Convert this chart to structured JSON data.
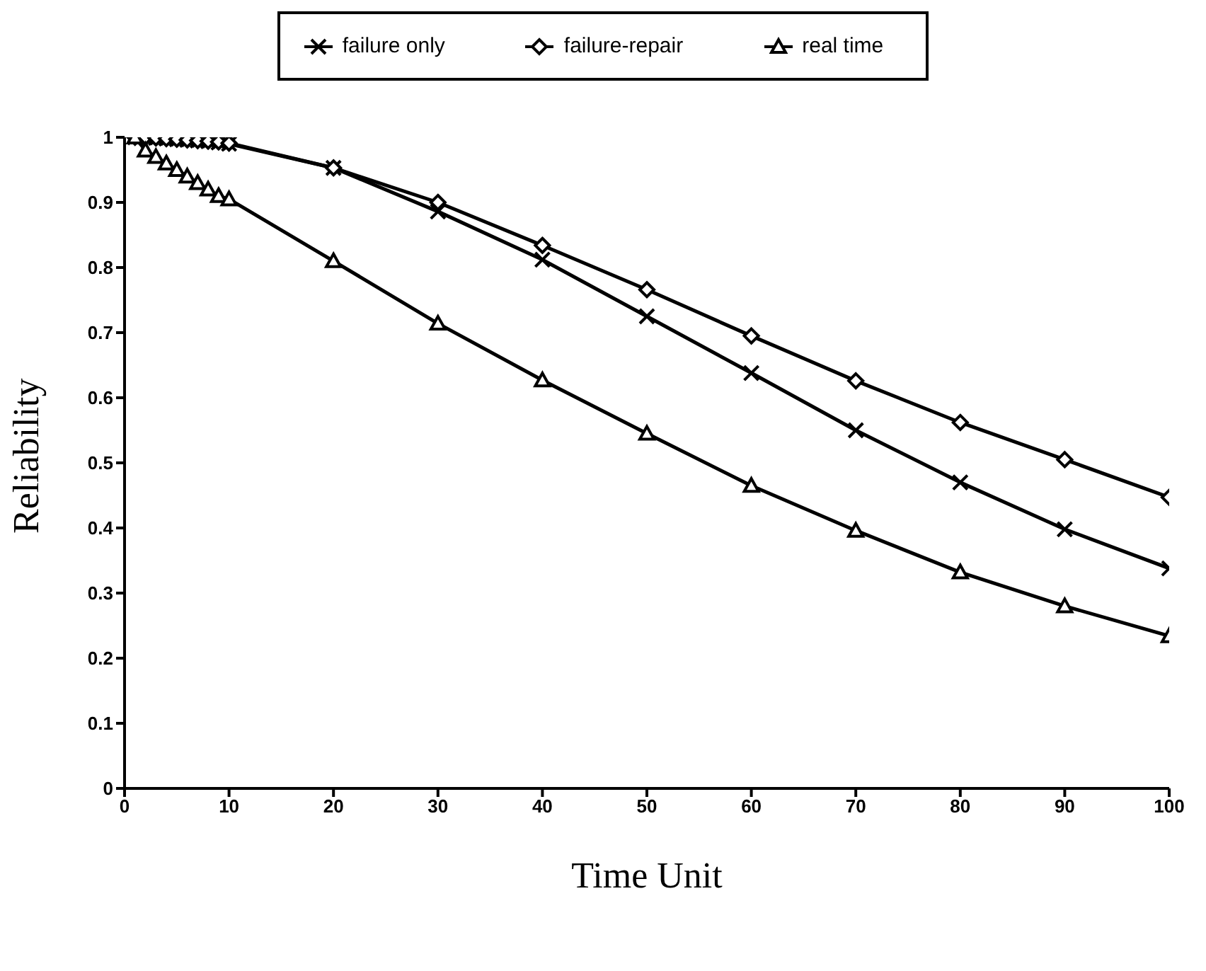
{
  "chart_data": {
    "type": "line",
    "xlabel": "Time Unit",
    "ylabel": "Reliability",
    "xlim": [
      0,
      100
    ],
    "xticks": [
      0,
      10,
      20,
      30,
      40,
      50,
      60,
      70,
      80,
      90,
      100
    ],
    "ylim": [
      0,
      1
    ],
    "yticks": [
      0,
      0.1,
      0.2,
      0.3,
      0.4,
      0.5,
      0.6,
      0.7,
      0.8,
      0.9,
      1
    ],
    "grid": false,
    "legend": "top",
    "line_style": "solid",
    "x": [
      1,
      2,
      3,
      4,
      5,
      6,
      7,
      8,
      9,
      10,
      20,
      30,
      40,
      50,
      60,
      70,
      80,
      90,
      100
    ],
    "series": [
      {
        "name": "failure only",
        "color": "#000000",
        "marker": "cross",
        "values": [
          1.0,
          1.0,
          0.999,
          0.998,
          0.997,
          0.996,
          0.995,
          0.994,
          0.992,
          0.99,
          0.953,
          0.886,
          0.812,
          0.725,
          0.638,
          0.55,
          0.47,
          0.398,
          0.338
        ]
      },
      {
        "name": "failure-repair",
        "color": "#000000",
        "marker": "diamond",
        "values": [
          1.0,
          1.0,
          0.999,
          0.998,
          0.997,
          0.996,
          0.995,
          0.994,
          0.993,
          0.991,
          0.953,
          0.9,
          0.834,
          0.766,
          0.695,
          0.626,
          0.562,
          0.505,
          0.447
        ]
      },
      {
        "name": "real time",
        "color": "#000000",
        "marker": "triangle",
        "values": [
          1.0,
          0.98,
          0.97,
          0.96,
          0.95,
          0.94,
          0.93,
          0.92,
          0.91,
          0.905,
          0.81,
          0.714,
          0.627,
          0.545,
          0.465,
          0.396,
          0.332,
          0.28,
          0.234
        ]
      }
    ]
  }
}
